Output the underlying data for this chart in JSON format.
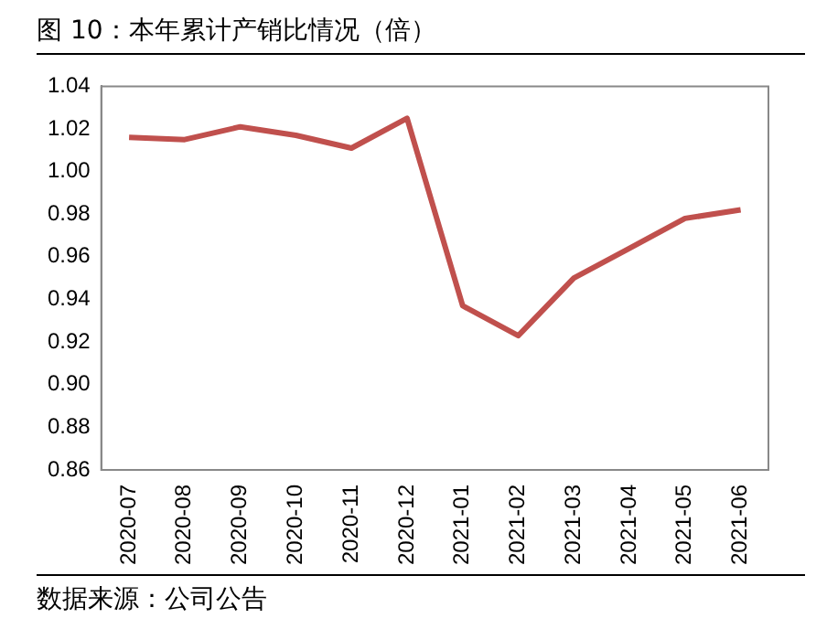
{
  "chart_data": {
    "type": "line",
    "title": "图 10：本年累计产销比情况（倍）",
    "categories": [
      "2020-07",
      "2020-08",
      "2020-09",
      "2020-10",
      "2020-11",
      "2020-12",
      "2021-01",
      "2021-02",
      "2021-03",
      "2021-04",
      "2021-05",
      "2021-06"
    ],
    "series": [
      {
        "color": "#c0504d",
        "values": [
          1.016,
          1.015,
          1.021,
          1.017,
          1.011,
          1.025,
          0.937,
          0.923,
          0.95,
          0.964,
          0.978,
          0.982
        ]
      }
    ],
    "ylim": [
      0.86,
      1.04
    ],
    "yticks": [
      0.86,
      0.88,
      {
        "value": 0.9,
        "label": "0.90"
      },
      0.92,
      0.94,
      0.96,
      0.98,
      {
        "value": 1,
        "label": "1.00"
      },
      1.02,
      1.04
    ],
    "grid": false,
    "legend": false,
    "marker": "none",
    "line_style": "solid",
    "annotations": [
      "数据来源：公司公告"
    ]
  }
}
